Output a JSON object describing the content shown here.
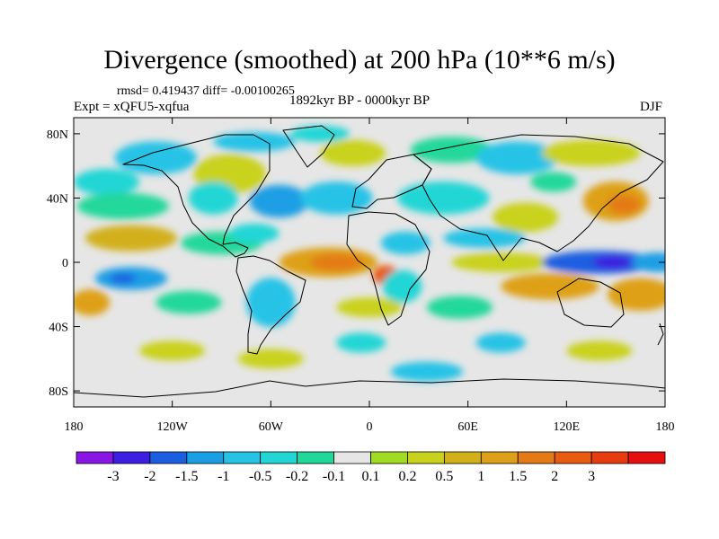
{
  "title": "Divergence (smoothed) at 200 hPa (10**6 m/s)",
  "stats": "rmsd= 0.419437 diff= -0.00100265",
  "period": "1892kyr BP - 0000kyr BP",
  "experiment": "Expt = xQFU5-xqfua",
  "season": "DJF",
  "axes": {
    "y_ticks": [
      {
        "label": "80N",
        "lat": 80
      },
      {
        "label": "40N",
        "lat": 40
      },
      {
        "label": "0",
        "lat": 0
      },
      {
        "label": "40S",
        "lat": -40
      },
      {
        "label": "80S",
        "lat": -80
      }
    ],
    "x_ticks": [
      {
        "label": "180",
        "lon": -180
      },
      {
        "label": "120W",
        "lon": -120
      },
      {
        "label": "60W",
        "lon": -60
      },
      {
        "label": "0",
        "lon": 0
      },
      {
        "label": "60E",
        "lon": 60
      },
      {
        "label": "120E",
        "lon": 120
      },
      {
        "label": "180",
        "lon": 180
      }
    ]
  },
  "colorbar": {
    "colors": [
      "#8a16e6",
      "#3c1fe0",
      "#1b5fe0",
      "#1a9fe4",
      "#26c3e6",
      "#22d6d6",
      "#20d89a",
      "#e6e6e6",
      "#a2dc22",
      "#c9d21a",
      "#d2b01a",
      "#dea018",
      "#e47a16",
      "#e85c12",
      "#e83c10",
      "#e60e0e"
    ],
    "labels": [
      "-3",
      "-2",
      "-1.5",
      "-1",
      "-0.5",
      "-0.2",
      "-0.1",
      "0.1",
      "0.2",
      "0.5",
      "1",
      "1.5",
      "2",
      "3"
    ]
  },
  "field": {
    "background": "#e6e6e6",
    "blobs": [
      {
        "lon": -30,
        "lat": 80,
        "rx": 18,
        "ry": 5,
        "c": "#22d6d6"
      },
      {
        "lon": -70,
        "lat": 75,
        "rx": 25,
        "ry": 6,
        "c": "#26c3e6"
      },
      {
        "lon": -10,
        "lat": 68,
        "rx": 20,
        "ry": 8,
        "c": "#c9d21a"
      },
      {
        "lon": 50,
        "lat": 70,
        "rx": 25,
        "ry": 8,
        "c": "#20d89a"
      },
      {
        "lon": 90,
        "lat": 65,
        "rx": 25,
        "ry": 10,
        "c": "#26c3e6"
      },
      {
        "lon": 135,
        "lat": 68,
        "rx": 30,
        "ry": 8,
        "c": "#c9d21a"
      },
      {
        "lon": -130,
        "lat": 65,
        "rx": 25,
        "ry": 10,
        "c": "#26c3e6"
      },
      {
        "lon": -85,
        "lat": 55,
        "rx": 22,
        "ry": 12,
        "c": "#c9d21a"
      },
      {
        "lon": -160,
        "lat": 50,
        "rx": 20,
        "ry": 8,
        "c": "#22d6d6"
      },
      {
        "lon": -150,
        "lat": 35,
        "rx": 28,
        "ry": 8,
        "c": "#20d89a"
      },
      {
        "lon": -95,
        "lat": 40,
        "rx": 15,
        "ry": 10,
        "c": "#22d6d6"
      },
      {
        "lon": -55,
        "lat": 38,
        "rx": 18,
        "ry": 10,
        "c": "#1a9fe4"
      },
      {
        "lon": -20,
        "lat": 40,
        "rx": 22,
        "ry": 10,
        "c": "#26c3e6"
      },
      {
        "lon": 45,
        "lat": 40,
        "rx": 28,
        "ry": 10,
        "c": "#22d6d6"
      },
      {
        "lon": 95,
        "lat": 28,
        "rx": 20,
        "ry": 9,
        "c": "#c9d21a"
      },
      {
        "lon": 150,
        "lat": 38,
        "rx": 20,
        "ry": 12,
        "c": "#dea018"
      },
      {
        "lon": 155,
        "lat": 36,
        "rx": 10,
        "ry": 6,
        "c": "#e47a16"
      },
      {
        "lon": 112,
        "lat": 50,
        "rx": 14,
        "ry": 6,
        "c": "#20d89a"
      },
      {
        "lon": -145,
        "lat": 15,
        "rx": 28,
        "ry": 8,
        "c": "#d2b01a"
      },
      {
        "lon": -90,
        "lat": 12,
        "rx": 25,
        "ry": 7,
        "c": "#20d89a"
      },
      {
        "lon": -70,
        "lat": 18,
        "rx": 15,
        "ry": 6,
        "c": "#22d6d6"
      },
      {
        "lon": -25,
        "lat": 0,
        "rx": 30,
        "ry": 9,
        "c": "#dea018"
      },
      {
        "lon": -20,
        "lat": 0,
        "rx": 16,
        "ry": 5,
        "c": "#e47a16"
      },
      {
        "lon": 10,
        "lat": -8,
        "rx": 8,
        "ry": 6,
        "c": "#e85c12"
      },
      {
        "lon": 22,
        "lat": 12,
        "rx": 15,
        "ry": 7,
        "c": "#26c3e6"
      },
      {
        "lon": 20,
        "lat": -15,
        "rx": 12,
        "ry": 10,
        "c": "#22d6d6"
      },
      {
        "lon": 70,
        "lat": 15,
        "rx": 25,
        "ry": 6,
        "c": "#26c3e6"
      },
      {
        "lon": 80,
        "lat": 0,
        "rx": 30,
        "ry": 6,
        "c": "#c9d21a"
      },
      {
        "lon": 140,
        "lat": 0,
        "rx": 35,
        "ry": 7,
        "c": "#1b5fe0"
      },
      {
        "lon": 148,
        "lat": 0,
        "rx": 12,
        "ry": 4,
        "c": "#3c1fe0"
      },
      {
        "lon": 175,
        "lat": 0,
        "rx": 15,
        "ry": 6,
        "c": "#1a9fe4"
      },
      {
        "lon": 110,
        "lat": -15,
        "rx": 30,
        "ry": 8,
        "c": "#dea018"
      },
      {
        "lon": 165,
        "lat": -20,
        "rx": 20,
        "ry": 10,
        "c": "#dea018"
      },
      {
        "lon": -145,
        "lat": -10,
        "rx": 22,
        "ry": 7,
        "c": "#1a9fe4"
      },
      {
        "lon": -150,
        "lat": -10,
        "rx": 8,
        "ry": 3,
        "c": "#1b5fe0"
      },
      {
        "lon": -170,
        "lat": -25,
        "rx": 12,
        "ry": 8,
        "c": "#dea018"
      },
      {
        "lon": -110,
        "lat": -25,
        "rx": 20,
        "ry": 7,
        "c": "#20d89a"
      },
      {
        "lon": -60,
        "lat": -25,
        "rx": 15,
        "ry": 15,
        "c": "#26c3e6"
      },
      {
        "lon": 0,
        "lat": -28,
        "rx": 20,
        "ry": 6,
        "c": "#c9d21a"
      },
      {
        "lon": 55,
        "lat": -28,
        "rx": 20,
        "ry": 7,
        "c": "#20d89a"
      },
      {
        "lon": -5,
        "lat": -50,
        "rx": 15,
        "ry": 6,
        "c": "#22d6d6"
      },
      {
        "lon": 80,
        "lat": -50,
        "rx": 15,
        "ry": 6,
        "c": "#26c3e6"
      },
      {
        "lon": -120,
        "lat": -55,
        "rx": 20,
        "ry": 6,
        "c": "#c9d21a"
      },
      {
        "lon": -60,
        "lat": -60,
        "rx": 20,
        "ry": 6,
        "c": "#c9d21a"
      },
      {
        "lon": 35,
        "lat": -68,
        "rx": 22,
        "ry": 6,
        "c": "#26c3e6"
      },
      {
        "lon": 140,
        "lat": -55,
        "rx": 20,
        "ry": 6,
        "c": "#c9d21a"
      }
    ]
  }
}
